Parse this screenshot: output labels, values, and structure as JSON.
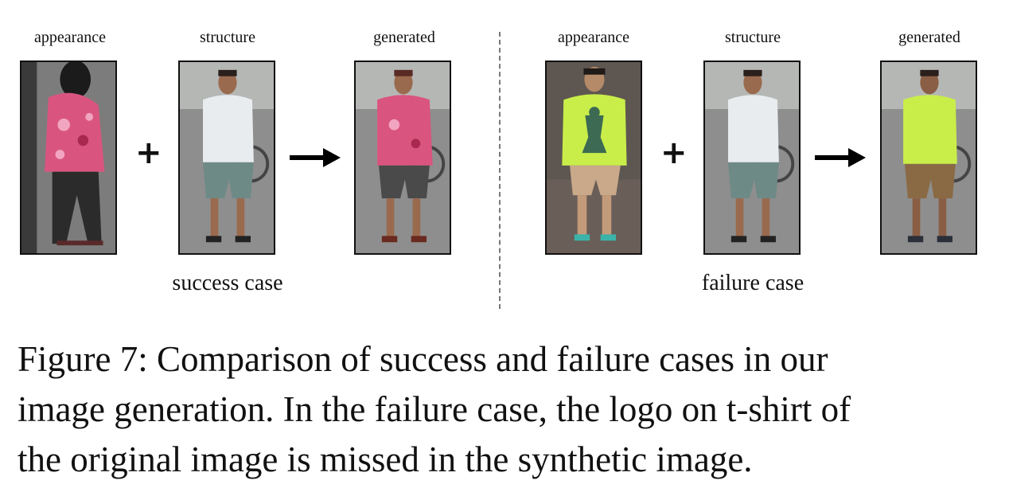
{
  "success": {
    "appearance_label": "appearance",
    "structure_label": "structure",
    "generated_label": "generated",
    "case_label": "success case",
    "plus": "+"
  },
  "failure": {
    "appearance_label": "appearance",
    "structure_label": "structure",
    "generated_label": "generated",
    "case_label": "failure case",
    "plus": "+"
  },
  "caption": {
    "line1": "Figure 7:  Comparison of success and failure cases in our",
    "line2": "image generation.  In the failure case, the logo on t-shirt of",
    "line3": "the original image is missed in the synthetic image."
  },
  "colors": {
    "pink_floral": "#d9557f",
    "white_shirt": "#e9ecef",
    "lime_shirt": "#c9ee4a",
    "grey_shorts": "#6e8a86",
    "brown_shorts": "#8a6a45",
    "background_grey": "#8a8a8a"
  }
}
